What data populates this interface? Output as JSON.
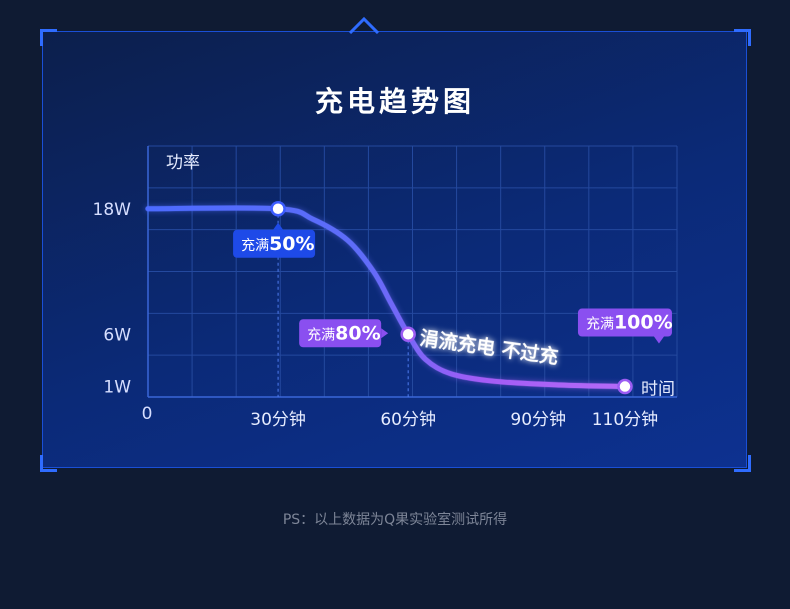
{
  "title": "充电趋势图",
  "footnote": "PS：以上数据为Q果实验室测试所得",
  "colors": {
    "background": "#0f1b33",
    "frame": "#2f6cff",
    "curve_start": "#4c6bff",
    "curve_end": "#a35cf5",
    "label_blue": "#1e4ae8",
    "label_purple": "#8a4ff0"
  },
  "chart_data": {
    "type": "line",
    "ylabel": "功率",
    "xlabel": "时间",
    "origin_label": "0",
    "x_ticks": [
      {
        "value": 30,
        "label": "30分钟"
      },
      {
        "value": 60,
        "label": "60分钟"
      },
      {
        "value": 90,
        "label": "90分钟"
      },
      {
        "value": 110,
        "label": "110分钟"
      }
    ],
    "y_ticks": [
      {
        "value": 18,
        "label": "18W"
      },
      {
        "value": 6,
        "label": "6W"
      },
      {
        "value": 1,
        "label": "1W"
      }
    ],
    "xlim": [
      0,
      122
    ],
    "ylim": [
      0,
      24
    ],
    "grid": true,
    "series": [
      {
        "points": [
          [
            0,
            18
          ],
          [
            30,
            18
          ],
          [
            38,
            17
          ],
          [
            46,
            15
          ],
          [
            52,
            12
          ],
          [
            56,
            9
          ],
          [
            60,
            6
          ],
          [
            64,
            3.6
          ],
          [
            70,
            2.2
          ],
          [
            80,
            1.5
          ],
          [
            95,
            1.15
          ],
          [
            110,
            1
          ]
        ]
      }
    ],
    "markers": [
      {
        "x": 30,
        "y": 18,
        "label_prefix": "充满",
        "label_value": "50%",
        "style": "blue",
        "dashed_drop": true
      },
      {
        "x": 60,
        "y": 6,
        "label_prefix": "充满",
        "label_value": "80%",
        "style": "purple",
        "dashed_drop": true
      },
      {
        "x": 110,
        "y": 1,
        "label_prefix": "充满",
        "label_value": "100%",
        "style": "purple",
        "dashed_drop": false
      }
    ],
    "annotation": "涓流充电 不过充"
  }
}
